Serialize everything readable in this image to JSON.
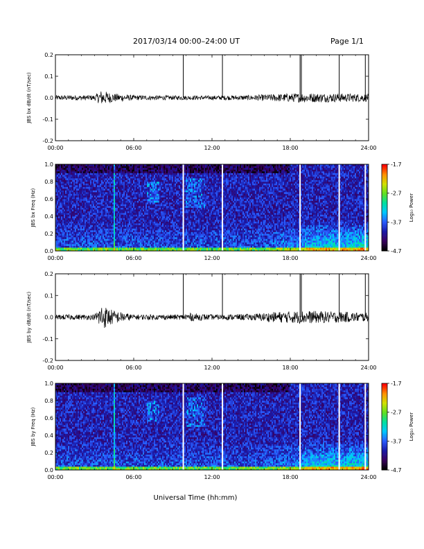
{
  "header": {
    "date_range": "2017/03/14   00:00–24:00 UT",
    "page": "Page 1/1"
  },
  "colorbar": {
    "label": "Log₁₀ Power",
    "tick_labels": [
      "-1.7",
      "-2.7",
      "-3.7",
      "-4.7"
    ],
    "colors": [
      "#000000",
      "#3a005e",
      "#1a1aa8",
      "#2a5cff",
      "#00c8ff",
      "#00e0a0",
      "#60e020",
      "#d0e000",
      "#ff9000",
      "#ff0000"
    ]
  },
  "chart_data": [
    {
      "type": "line",
      "title": "",
      "ylabel": "JBS bx dB/dt (nT/sec)",
      "xlabel": "",
      "xlim": [
        "00:00",
        "24:00"
      ],
      "ylim": [
        -0.2,
        0.2
      ],
      "x_tick_labels": [
        "00:00",
        "06:00",
        "12:00",
        "18:00",
        "24:00"
      ],
      "y_tick_labels": [
        "0.2",
        "0.1",
        "0.0",
        "-0.1",
        "-0.2"
      ],
      "noise_envelope": [
        {
          "x": 0.0,
          "amp": 0.012
        },
        {
          "x": 3.0,
          "amp": 0.012
        },
        {
          "x": 3.5,
          "amp": 0.035
        },
        {
          "x": 4.5,
          "amp": 0.02
        },
        {
          "x": 6.0,
          "amp": 0.012
        },
        {
          "x": 9.0,
          "amp": 0.01
        },
        {
          "x": 12.0,
          "amp": 0.01
        },
        {
          "x": 15.0,
          "amp": 0.012
        },
        {
          "x": 17.0,
          "amp": 0.018
        },
        {
          "x": 19.0,
          "amp": 0.022
        },
        {
          "x": 22.0,
          "amp": 0.02
        },
        {
          "x": 24.0,
          "amp": 0.018
        }
      ],
      "spikes": [
        {
          "x": 9.8,
          "y": 0.2
        },
        {
          "x": 12.8,
          "y": 0.2
        },
        {
          "x": 18.75,
          "y": 0.2
        },
        {
          "x": 18.85,
          "y": 0.2
        },
        {
          "x": 21.75,
          "y": 0.2
        },
        {
          "x": 23.75,
          "y": 0.2
        }
      ]
    },
    {
      "type": "heatmap",
      "title": "",
      "ylabel": "JBS bx Freq (Hz)",
      "xlabel": "",
      "xlim": [
        "00:00",
        "24:00"
      ],
      "ylim": [
        0.0,
        1.0
      ],
      "zlim": [
        -4.7,
        -1.7
      ],
      "zlabel": "Log₁₀ Power",
      "x_tick_labels": [
        "00:00",
        "06:00",
        "12:00",
        "18:00",
        "24:00"
      ],
      "y_tick_labels": [
        "1.0",
        "0.8",
        "0.6",
        "0.4",
        "0.2",
        "0.0"
      ],
      "data_gaps_hours": [
        9.8,
        12.8,
        18.75,
        21.75,
        23.75
      ]
    },
    {
      "type": "line",
      "title": "",
      "ylabel": "JBS by dB/dt (nT/sec)",
      "xlabel": "",
      "xlim": [
        "00:00",
        "24:00"
      ],
      "ylim": [
        -0.2,
        0.2
      ],
      "x_tick_labels": [
        "00:00",
        "06:00",
        "12:00",
        "18:00",
        "24:00"
      ],
      "y_tick_labels": [
        "0.2",
        "0.1",
        "0.0",
        "-0.1",
        "-0.2"
      ],
      "noise_envelope": [
        {
          "x": 0.0,
          "amp": 0.012
        },
        {
          "x": 3.0,
          "amp": 0.012
        },
        {
          "x": 3.5,
          "amp": 0.06
        },
        {
          "x": 4.5,
          "amp": 0.03
        },
        {
          "x": 6.0,
          "amp": 0.012
        },
        {
          "x": 9.8,
          "amp": 0.012
        },
        {
          "x": 10.0,
          "amp": 0.02
        },
        {
          "x": 12.0,
          "amp": 0.012
        },
        {
          "x": 15.0,
          "amp": 0.015
        },
        {
          "x": 17.0,
          "amp": 0.025
        },
        {
          "x": 19.0,
          "amp": 0.03
        },
        {
          "x": 22.0,
          "amp": 0.025
        },
        {
          "x": 24.0,
          "amp": 0.02
        }
      ],
      "spikes": [
        {
          "x": 9.8,
          "y": 0.2
        },
        {
          "x": 12.8,
          "y": 0.2
        },
        {
          "x": 18.75,
          "y": 0.2
        },
        {
          "x": 18.85,
          "y": 0.2
        },
        {
          "x": 21.75,
          "y": 0.2
        },
        {
          "x": 23.75,
          "y": 0.2
        }
      ]
    },
    {
      "type": "heatmap",
      "title": "",
      "ylabel": "JBS by Freq (Hz)",
      "xlabel": "Universal Time (hh:mm)",
      "xlim": [
        "00:00",
        "24:00"
      ],
      "ylim": [
        0.0,
        1.0
      ],
      "zlim": [
        -4.7,
        -1.7
      ],
      "zlabel": "Log₁₀ Power",
      "x_tick_labels": [
        "00:00",
        "06:00",
        "12:00",
        "18:00",
        "24:00"
      ],
      "y_tick_labels": [
        "1.0",
        "0.8",
        "0.6",
        "0.4",
        "0.2",
        "0.0"
      ],
      "data_gaps_hours": [
        9.8,
        12.8,
        18.75,
        21.75,
        23.75
      ]
    }
  ]
}
